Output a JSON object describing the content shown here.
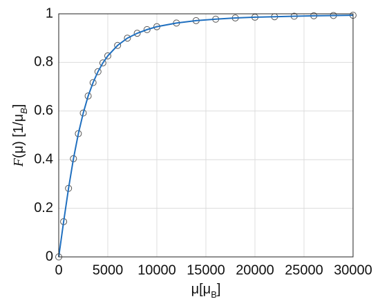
{
  "chart_data": {
    "type": "line",
    "x_label": "μ[μ",
    "x_label_sub": "B",
    "x_label_end": "]",
    "y_label_f": "F",
    "y_label": "(μ) [1/μ",
    "y_label_sub": "B",
    "y_label_end": "]",
    "x": [
      0,
      500,
      1000,
      1500,
      2000,
      2500,
      3000,
      3500,
      4000,
      4500,
      5000,
      6000,
      7000,
      8000,
      9000,
      10000,
      12000,
      14000,
      16000,
      18000,
      20000,
      22000,
      24000,
      26000,
      28000,
      30000
    ],
    "series": [
      {
        "style": "markers",
        "color": "#555555",
        "values": [
          0,
          0.145,
          0.282,
          0.404,
          0.507,
          0.592,
          0.662,
          0.717,
          0.762,
          0.798,
          0.827,
          0.87,
          0.9,
          0.92,
          0.935,
          0.947,
          0.962,
          0.972,
          0.978,
          0.983,
          0.986,
          0.988,
          0.99,
          0.992,
          0.993,
          0.994
        ]
      },
      {
        "style": "line",
        "color": "#1f6fbf",
        "values": [
          0,
          0.145,
          0.282,
          0.404,
          0.507,
          0.592,
          0.662,
          0.717,
          0.762,
          0.798,
          0.827,
          0.87,
          0.9,
          0.92,
          0.935,
          0.947,
          0.962,
          0.972,
          0.978,
          0.983,
          0.986,
          0.988,
          0.99,
          0.992,
          0.993,
          0.994
        ]
      }
    ],
    "xlim": [
      0,
      30000
    ],
    "xticks": [
      0,
      5000,
      10000,
      15000,
      20000,
      25000,
      30000
    ],
    "ylim": [
      0,
      1
    ],
    "yticks": [
      0,
      0.2,
      0.4,
      0.6,
      0.8,
      1
    ],
    "grid": true
  }
}
